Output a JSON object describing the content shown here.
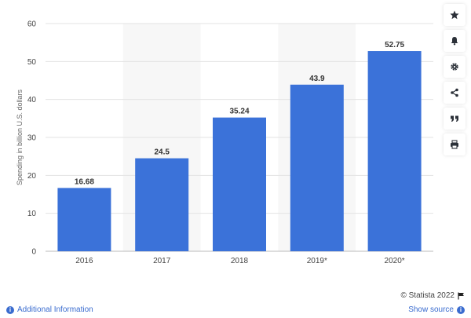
{
  "chart_data": {
    "type": "bar",
    "categories": [
      "2016",
      "2017",
      "2018",
      "2019*",
      "2020*"
    ],
    "values": [
      16.68,
      24.5,
      35.24,
      43.9,
      52.75
    ],
    "value_labels": [
      "16.68",
      "24.5",
      "35.24",
      "43.9",
      "52.75"
    ],
    "title": "",
    "xlabel": "",
    "ylabel": "Spending in billion U.S. dollars",
    "ylim": [
      0,
      60
    ],
    "yticks": [
      "0",
      "10",
      "20",
      "30",
      "40",
      "50",
      "60"
    ],
    "grid": true,
    "bar_color": "#3b72d9"
  },
  "toolbar": {
    "icons": [
      "star-icon",
      "bell-icon",
      "gear-icon",
      "share-icon",
      "quote-icon",
      "print-icon"
    ]
  },
  "footer": {
    "credit": "© Statista 2022",
    "additional_info": "Additional Information",
    "show_source": "Show source"
  }
}
